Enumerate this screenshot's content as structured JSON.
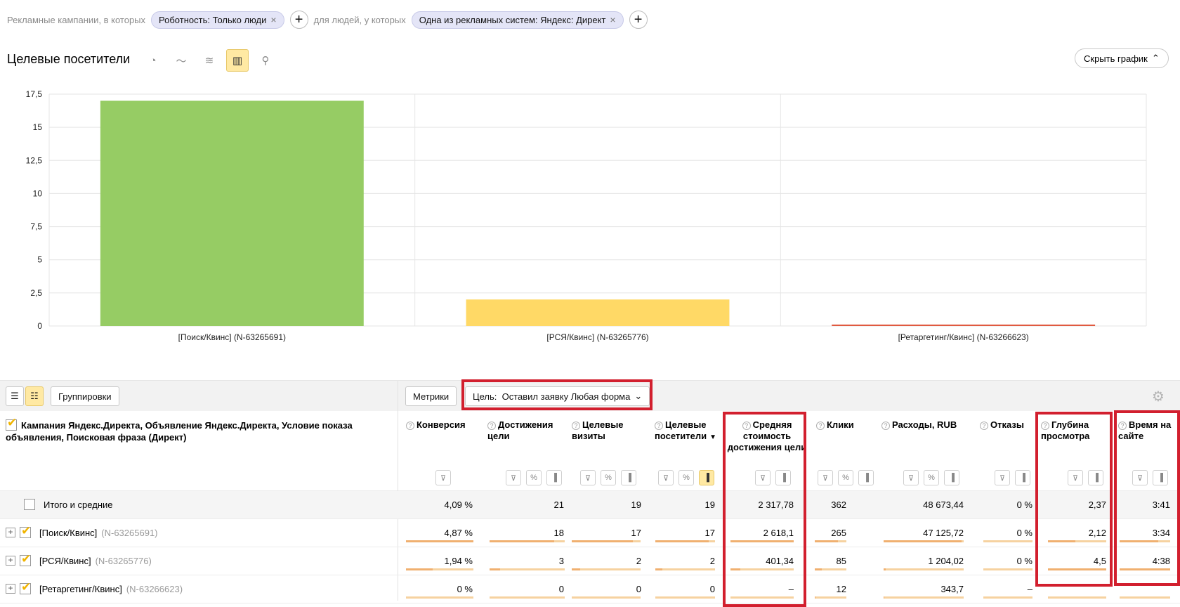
{
  "filters": {
    "prefix_1": "Рекламные кампании, в которых",
    "chip_1": "Роботность: Только люди",
    "prefix_2": "для людей, у которых",
    "chip_2": "Одна из рекламных систем: Яндекс: Директ",
    "remove_icon": "×",
    "add_icon": "+"
  },
  "header": {
    "title": "Целевые посетители",
    "view_icons": [
      "pie-chart-icon",
      "line-chart-icon",
      "area-chart-icon",
      "bar-chart-icon",
      "map-icon"
    ],
    "view_glyphs": [
      "◔",
      "〜",
      "≋",
      "▥",
      "⚲"
    ],
    "active_view": "bar-chart-icon",
    "hide_chart_label": "Скрыть график",
    "hide_chart_chevron": "⌃"
  },
  "chart_data": {
    "type": "bar",
    "categories": [
      "[Поиск/Квинс] (N-63265691)",
      "[РСЯ/Квинс] (N-63265776)",
      "[Ретаргетинг/Квинс] (N-63266623)"
    ],
    "values": [
      17,
      2,
      0.1
    ],
    "colors": [
      "#96cc64",
      "#ffd966",
      "#e05a40"
    ],
    "yticks": [
      "0",
      "2,5",
      "5",
      "7,5",
      "10",
      "12,5",
      "15",
      "17,5"
    ],
    "ylim": [
      0,
      17.5
    ],
    "grid": true
  },
  "toolbar": {
    "list_icon": "☰",
    "tree_icon": "☷",
    "groupings_label": "Группировки",
    "metrics_label": "Метрики",
    "goal_label": "Цель:  Оставил заявку Любая форма",
    "goal_chevron": "⌄",
    "settings_icon": "⚙"
  },
  "table": {
    "dimension_header": "Кампания Яндекс.Директа, Объявление Яндекс.Директа, Условие показа объявления, Поисковая фраза (Директ)",
    "help_glyph": "?",
    "columns": [
      {
        "label": "Конверсия"
      },
      {
        "label": "Достижения цели"
      },
      {
        "label": "Целевые визиты"
      },
      {
        "label": "Целевые посетители",
        "sort": "▼"
      },
      {
        "label": "Средняя стоимость достижения цели"
      },
      {
        "label": "Клики"
      },
      {
        "label": "Расходы, RUB"
      },
      {
        "label": "Отказы"
      },
      {
        "label": "Глубина просмотра"
      },
      {
        "label": "Время на сайте"
      }
    ],
    "tool_glyphs": {
      "filter": "⊽",
      "percent": "%",
      "chart": "▐"
    },
    "total_label": "Итого и средние",
    "totals": [
      "4,09 %",
      "21",
      "19",
      "19",
      "2 317,78",
      "362",
      "48 673,44",
      "0 %",
      "2,37",
      "3:41"
    ],
    "rows": [
      {
        "name": "[Поиск/Квинс]",
        "id": "(N-63265691)",
        "values": [
          "4,87 %",
          "18",
          "17",
          "17",
          "2 618,1",
          "265",
          "47 125,72",
          "0 %",
          "2,12",
          "3:34"
        ],
        "levels": [
          1,
          0.86,
          0.89,
          0.89,
          1,
          0.73,
          0.97,
          0,
          0.47,
          0.76
        ]
      },
      {
        "name": "[РСЯ/Квинс]",
        "id": "(N-63265776)",
        "values": [
          "1,94 %",
          "3",
          "2",
          "2",
          "401,34",
          "85",
          "1 204,02",
          "0 %",
          "4,5",
          "4:38"
        ],
        "levels": [
          0.4,
          0.14,
          0.12,
          0.12,
          0.15,
          0.23,
          0.03,
          0,
          1,
          1
        ]
      },
      {
        "name": "[Ретаргетинг/Квинс]",
        "id": "(N-63266623)",
        "values": [
          "0 %",
          "0",
          "0",
          "0",
          "–",
          "12",
          "343,7",
          "–",
          "",
          ""
        ],
        "levels": [
          0,
          0,
          0,
          0,
          0,
          0.03,
          0.01,
          0,
          0,
          0
        ]
      }
    ],
    "expand_glyph": "+"
  }
}
